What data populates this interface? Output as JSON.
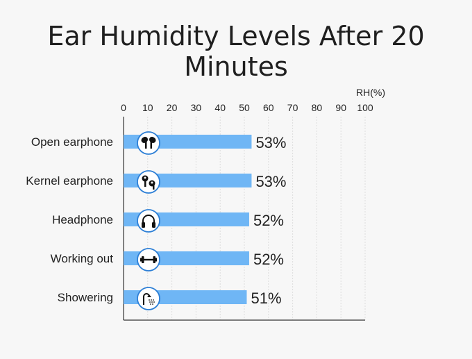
{
  "chart_data": {
    "type": "bar",
    "orientation": "horizontal",
    "title": "Ear Humidity Levels After 20 Minutes",
    "unit_label": "RH(%)",
    "x_ticks": [
      0,
      10,
      20,
      30,
      40,
      50,
      60,
      70,
      80,
      90,
      100
    ],
    "xlim": [
      0,
      100
    ],
    "grid": true,
    "bar_color": "#6fb6f5",
    "categories": [
      "Open earphone",
      "Kernel earphone",
      "Headphone",
      "Working out",
      "Showering"
    ],
    "values": [
      53,
      53,
      52,
      52,
      51
    ],
    "value_labels": [
      "53%",
      "53%",
      "52%",
      "52%",
      "51%"
    ],
    "icons": [
      "open-earphone-icon",
      "kernel-earphone-icon",
      "headphone-icon",
      "dumbbell-icon",
      "shower-icon"
    ]
  }
}
